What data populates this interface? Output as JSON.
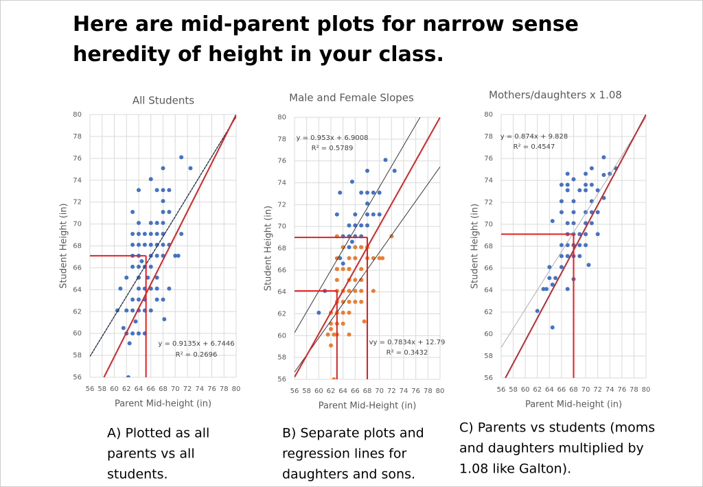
{
  "title": [
    "Here are mid-parent plots for narrow sense",
    "heredity of height in your class."
  ],
  "captions": [
    [
      "A) Plotted as all",
      "parents vs all",
      "students."
    ],
    [
      "B) Separate plots and",
      "regression lines for",
      "daughters and sons."
    ],
    [
      "C) Parents vs students (moms",
      "and daughters multiplied by",
      "1.08 like Galton)."
    ]
  ],
  "chart_data": [
    {
      "type": "scatter",
      "title": "All Students",
      "xlabel": "Parent Mid-height (in)",
      "ylabel": "Student Height (in)",
      "xlim": [
        56,
        80
      ],
      "ylim": [
        56,
        80
      ],
      "xticks": [
        56,
        58,
        60,
        62,
        64,
        66,
        68,
        70,
        72,
        74,
        76,
        78,
        80
      ],
      "yticks": [
        56,
        58,
        60,
        62,
        64,
        66,
        68,
        70,
        72,
        74,
        76,
        78,
        80
      ],
      "grid": true,
      "series": [
        {
          "color": "#4472c4",
          "x": [
            62.3,
            62.5,
            62,
            63,
            64,
            65,
            61.5,
            63.5,
            62,
            63,
            64,
            65,
            66,
            60.5,
            63,
            64,
            65,
            67,
            68,
            68.2,
            61,
            64,
            65,
            66,
            67,
            69,
            64,
            62,
            65.5,
            67,
            63,
            64,
            65,
            66,
            64.5,
            63,
            64,
            66,
            67,
            68,
            70,
            70.5,
            63,
            64,
            65,
            66,
            67,
            68,
            69,
            64,
            65,
            66,
            67,
            68,
            71,
            63,
            64,
            66,
            67,
            68,
            63,
            68,
            69,
            68,
            64,
            67,
            68,
            69,
            66,
            68,
            71,
            72.5
          ],
          "values": [
            56,
            59.1,
            60,
            60,
            60,
            60,
            60.5,
            61.1,
            62.1,
            62.1,
            62.1,
            62.1,
            62.1,
            62.1,
            63.1,
            63.1,
            63.1,
            63.1,
            63.1,
            61.3,
            64.1,
            64.1,
            64.1,
            64.1,
            64.1,
            64.1,
            65.1,
            65.1,
            65.1,
            65.1,
            66.1,
            66.1,
            66.1,
            66.1,
            66.6,
            67.1,
            67.1,
            67.1,
            67.1,
            67.1,
            67.1,
            67.1,
            68.1,
            68.1,
            68.1,
            68.1,
            68.1,
            68.1,
            68.1,
            69.1,
            69.1,
            69.1,
            69.1,
            69.1,
            69.1,
            69.1,
            70.1,
            70.1,
            70.1,
            70.1,
            71.1,
            71.1,
            71.1,
            72.1,
            73.1,
            73.1,
            73.1,
            73.1,
            74.1,
            75.1,
            76.1,
            75.1
          ]
        }
      ],
      "trendlines": [
        {
          "slope": 0.9135,
          "intercept": 6.7446,
          "color": "#2f5597",
          "dashed": true,
          "label": "y = 0.9135x + 6.7446",
          "r2": "R² = 0.2696"
        }
      ],
      "lines": [
        {
          "color": "#222222",
          "x": [
            56,
            80
          ],
          "y": [
            57.9,
            79.8
          ]
        },
        {
          "color": "#e02020",
          "x": [
            58.3,
            80
          ],
          "y": [
            56,
            80
          ]
        },
        {
          "color": "#e02020",
          "x": [
            56,
            65.2
          ],
          "y": [
            67.1,
            67.1
          ]
        },
        {
          "color": "#e02020",
          "x": [
            65.2,
            65.2
          ],
          "y": [
            56,
            67.1
          ]
        }
      ]
    },
    {
      "type": "scatter",
      "title": "Male and Female Slopes",
      "xlabel": "Parent Mid-Height (in)",
      "ylabel": "Student Height (in)",
      "xlim": [
        56,
        80
      ],
      "ylim": [
        56,
        80
      ],
      "xticks": [
        56,
        58,
        60,
        62,
        64,
        66,
        68,
        70,
        72,
        74,
        76,
        78,
        80
      ],
      "yticks": [
        56,
        58,
        60,
        62,
        64,
        66,
        68,
        70,
        72,
        74,
        76,
        78,
        80
      ],
      "grid": true,
      "series": [
        {
          "color": "#4472c4",
          "x": [
            60,
            61,
            63,
            63.5,
            64,
            65,
            66,
            67,
            68,
            63,
            64,
            65,
            66,
            67,
            65,
            66,
            67,
            68,
            66,
            68,
            69,
            70,
            68,
            67,
            68,
            69,
            70,
            63.5,
            65.5,
            68,
            71,
            72.5,
            65,
            65.5,
            64,
            66
          ],
          "values": [
            62.1,
            64.1,
            66.1,
            67.1,
            68.1,
            68.1,
            68.1,
            68.1,
            68.1,
            71.1,
            69.1,
            69.1,
            69.1,
            69.1,
            70.1,
            70.1,
            70.1,
            70.1,
            71.1,
            71.1,
            71.1,
            71.1,
            72.1,
            73.1,
            73.1,
            73.1,
            73.1,
            73.1,
            74.1,
            75.1,
            76.1,
            75.1,
            66.1,
            68.6,
            66.6,
            67.1
          ]
        },
        {
          "color": "#ed7d31",
          "x": [
            62.5,
            62,
            61.5,
            62.5,
            63,
            62,
            65,
            62,
            63,
            64,
            62,
            63,
            64,
            65,
            63,
            64,
            65,
            66,
            67,
            67.5,
            63,
            64,
            65,
            66,
            67,
            69,
            63,
            65,
            66,
            67,
            63,
            64,
            65,
            67,
            63,
            65,
            66,
            68,
            69,
            70,
            70.5,
            64,
            66,
            67,
            68,
            72,
            63
          ],
          "values": [
            56,
            59.1,
            60.1,
            60.1,
            60.1,
            60.6,
            60.1,
            61.1,
            61.1,
            61.1,
            62.1,
            62.1,
            62.1,
            62.1,
            63.1,
            63.1,
            63.1,
            63.1,
            63.1,
            61.3,
            64.1,
            64.1,
            64.1,
            64.1,
            64.1,
            64.1,
            65.1,
            65.1,
            65.1,
            65.1,
            66.1,
            66.1,
            66.1,
            66.1,
            67.1,
            67.1,
            67.1,
            67.1,
            67.1,
            67.1,
            67.1,
            68.1,
            68.1,
            68.1,
            68.1,
            69.1,
            69.1
          ]
        }
      ],
      "trendlines": [
        {
          "slope": 0.953,
          "intercept": 6.9008,
          "color": "#222222",
          "dashed": false,
          "label": "y = 0.953x + 6.9008",
          "r2": "R² = 0.5789"
        },
        {
          "slope": 0.7834,
          "intercept": 12.79,
          "color": "#222222",
          "dashed": false,
          "label": "vy = 0.7834x + 12.79",
          "r2": "R² = 0.3432"
        }
      ],
      "lines": [
        {
          "color": "#e02020",
          "x": [
            56,
            80
          ],
          "y": [
            56.2,
            80
          ]
        },
        {
          "color": "#e02020",
          "x": [
            56,
            68
          ],
          "y": [
            69,
            69
          ]
        },
        {
          "color": "#e02020",
          "x": [
            68,
            68
          ],
          "y": [
            56,
            69
          ]
        },
        {
          "color": "#e02020",
          "x": [
            56,
            63
          ],
          "y": [
            64.1,
            64.1
          ]
        },
        {
          "color": "#e02020",
          "x": [
            63,
            63
          ],
          "y": [
            56,
            64.1
          ]
        }
      ]
    },
    {
      "type": "scatter",
      "title": "Mothers/daughters x 1.08",
      "xlabel": "Parent Mid-height (in)",
      "ylabel": "Student Height (in)",
      "xlim": [
        56,
        80
      ],
      "ylim": [
        56,
        80
      ],
      "xticks": [
        56,
        58,
        60,
        62,
        64,
        66,
        68,
        70,
        72,
        74,
        76,
        78,
        80
      ],
      "yticks": [
        56,
        58,
        60,
        62,
        64,
        66,
        68,
        70,
        72,
        74,
        76,
        78,
        80
      ],
      "grid": true,
      "series": [
        {
          "color": "#4472c4",
          "x": [
            64.5,
            62,
            63.5,
            64,
            65,
            64.5,
            63,
            67,
            68,
            64,
            66,
            66,
            67,
            68,
            69,
            70.5,
            66,
            67,
            68,
            69,
            70,
            67,
            68,
            69,
            70,
            72,
            67,
            68,
            70,
            71,
            66,
            68,
            70,
            71,
            72,
            66,
            68,
            71,
            73,
            67,
            69,
            70,
            72,
            66,
            67,
            70,
            71,
            68,
            67,
            70,
            71,
            73,
            74,
            75,
            73,
            64.5
          ],
          "values": [
            60.6,
            62.1,
            64.1,
            65.1,
            65.1,
            64.5,
            64.1,
            64.1,
            65,
            66.1,
            66.1,
            67.1,
            67.1,
            67.1,
            67.1,
            66.3,
            68.1,
            68.1,
            68.1,
            68.1,
            68.1,
            69.1,
            69.1,
            69.1,
            69.1,
            69.1,
            70.1,
            70.1,
            70.1,
            70.1,
            71.1,
            71.1,
            71.1,
            71.1,
            71.1,
            72.1,
            72.1,
            72.1,
            72.4,
            73.1,
            73.1,
            73.1,
            73.1,
            73.6,
            73.6,
            73.6,
            73.6,
            74.1,
            74.6,
            74.6,
            75.1,
            76.1,
            74.6,
            75.1,
            74.5,
            70.3
          ]
        }
      ],
      "trendlines": [
        {
          "slope": 0.874,
          "intercept": 9.828,
          "color": "#a6a6a6",
          "dashed": false,
          "label": "y = 0.874x + 9.828",
          "r2": "R² = 0.4547"
        }
      ],
      "lines": [
        {
          "color": "#c0282d",
          "x": [
            56.7,
            80
          ],
          "y": [
            56,
            80
          ]
        },
        {
          "color": "#e02020",
          "x": [
            56,
            68
          ],
          "y": [
            69.1,
            69.1
          ]
        },
        {
          "color": "#e02020",
          "x": [
            68,
            68
          ],
          "y": [
            56,
            69.1
          ]
        }
      ]
    }
  ]
}
